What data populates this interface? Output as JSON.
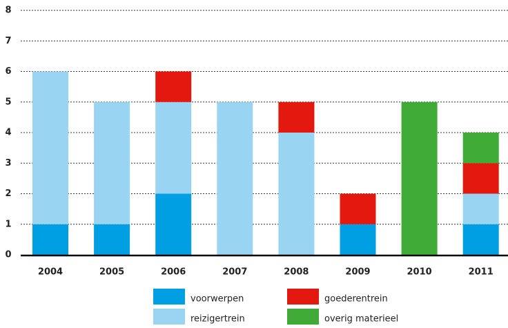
{
  "chart_data": {
    "type": "stacked-bar",
    "categories": [
      "2004",
      "2005",
      "2006",
      "2007",
      "2008",
      "2009",
      "2010",
      "2011"
    ],
    "series": [
      {
        "name": "voorwerpen",
        "color": "#009fe3",
        "values": [
          1,
          1,
          2,
          0,
          0,
          1,
          0,
          1
        ]
      },
      {
        "name": "reizigertrein",
        "color": "#99d4f2",
        "values": [
          5,
          4,
          3,
          5,
          4,
          0,
          0,
          1
        ]
      },
      {
        "name": "goederentrein",
        "color": "#e3190f",
        "values": [
          0,
          0,
          1,
          0,
          1,
          1,
          0,
          1
        ]
      },
      {
        "name": "overig materieel",
        "color": "#3faa35",
        "values": [
          0,
          0,
          0,
          0,
          0,
          0,
          5,
          1
        ]
      }
    ],
    "ylim": [
      0,
      8
    ],
    "yticks": [
      0,
      1,
      2,
      3,
      4,
      5,
      6,
      7,
      8
    ],
    "grid": true
  }
}
